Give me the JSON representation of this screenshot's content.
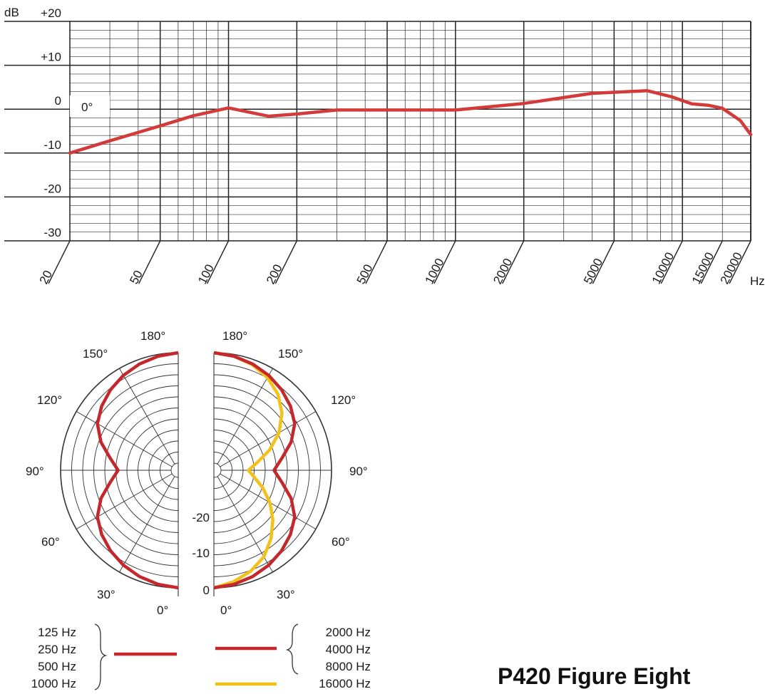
{
  "title": "P420 Figure Eight",
  "chart_data": [
    {
      "type": "line",
      "title": "",
      "xlabel": "Hz",
      "ylabel": "dB",
      "x_scale": "log",
      "xlim": [
        20,
        20000
      ],
      "ylim": [
        -30,
        20
      ],
      "grid": true,
      "x_ticks": [
        20,
        50,
        100,
        200,
        500,
        1000,
        2000,
        5000,
        10000,
        15000,
        20000
      ],
      "y_ticks": [
        "+20",
        "+10",
        "0",
        "-10",
        "-20",
        "-30"
      ],
      "annotation": "0°",
      "series": [
        {
          "name": "",
          "color": "#d33a3a",
          "x": [
            20,
            30,
            50,
            70,
            100,
            150,
            200,
            300,
            500,
            1000,
            2000,
            4000,
            7000,
            9000,
            11000,
            13000,
            15000,
            18000,
            20000
          ],
          "y": [
            -10,
            -7.2,
            -3.8,
            -1.5,
            0.3,
            -1.6,
            -1.1,
            -0.2,
            -0.2,
            -0.2,
            1.3,
            3.6,
            4.2,
            2.8,
            1.2,
            0.9,
            0.2,
            -2.6,
            -5.8
          ]
        }
      ]
    },
    {
      "type": "polar",
      "title": "",
      "angle_labels": [
        "180°",
        "150°",
        "120°",
        "90°",
        "60°",
        "30°",
        "0°"
      ],
      "radial_labels": [
        "-20",
        "-10",
        "0"
      ],
      "rlim": [
        -25,
        0
      ],
      "left_half": {
        "series": [
          {
            "name": "",
            "color": "#c4282d",
            "angles": [
              0,
              10,
              20,
              30,
              40,
              50,
              60,
              70,
              80,
              90,
              100,
              110,
              120,
              130,
              140,
              150,
              160,
              170,
              180
            ],
            "values": [
              0,
              -0.4,
              -1,
              -1.8,
              -2.8,
              -4,
              -5.5,
              -8,
              -11,
              -13,
              -11,
              -8,
              -5.5,
              -4,
              -2.8,
              -1.8,
              -1,
              -0.4,
              0
            ]
          }
        ]
      },
      "right_half": {
        "series": [
          {
            "name": "",
            "color": "#c4282d",
            "angles": [
              0,
              10,
              20,
              30,
              40,
              50,
              60,
              70,
              80,
              90,
              100,
              110,
              120,
              130,
              140,
              150,
              160,
              170,
              180
            ],
            "values": [
              0,
              -0.4,
              -1,
              -1.8,
              -2.8,
              -4,
              -5.5,
              -8,
              -11,
              -13,
              -11,
              -8,
              -5.5,
              -4,
              -2.8,
              -1.8,
              -1,
              -0.4,
              0
            ]
          },
          {
            "name": "",
            "color": "#f2c21b",
            "angles": [
              0,
              10,
              20,
              30,
              40,
              50,
              60,
              70,
              80,
              90,
              100,
              110,
              120,
              130,
              140,
              150,
              160,
              170,
              180
            ],
            "values": [
              0,
              -1,
              -2.3,
              -4,
              -6.5,
              -9.2,
              -12,
              -14.8,
              -17.3,
              -18.8,
              -16.7,
              -13.2,
              -9.6,
              -6.5,
              -4.1,
              -2.4,
              -1.2,
              -0.4,
              0
            ]
          }
        ]
      },
      "legend": {
        "left_group": {
          "labels": [
            "125 Hz",
            "250 Hz",
            "500 Hz",
            "1000 Hz"
          ],
          "color": "#c4282d"
        },
        "right_group_red": {
          "labels": [
            "2000 Hz",
            "4000 Hz",
            "8000 Hz"
          ],
          "color": "#c4282d"
        },
        "right_group_yellow": {
          "labels": [
            "16000 Hz"
          ],
          "color": "#f2c21b"
        }
      }
    }
  ]
}
